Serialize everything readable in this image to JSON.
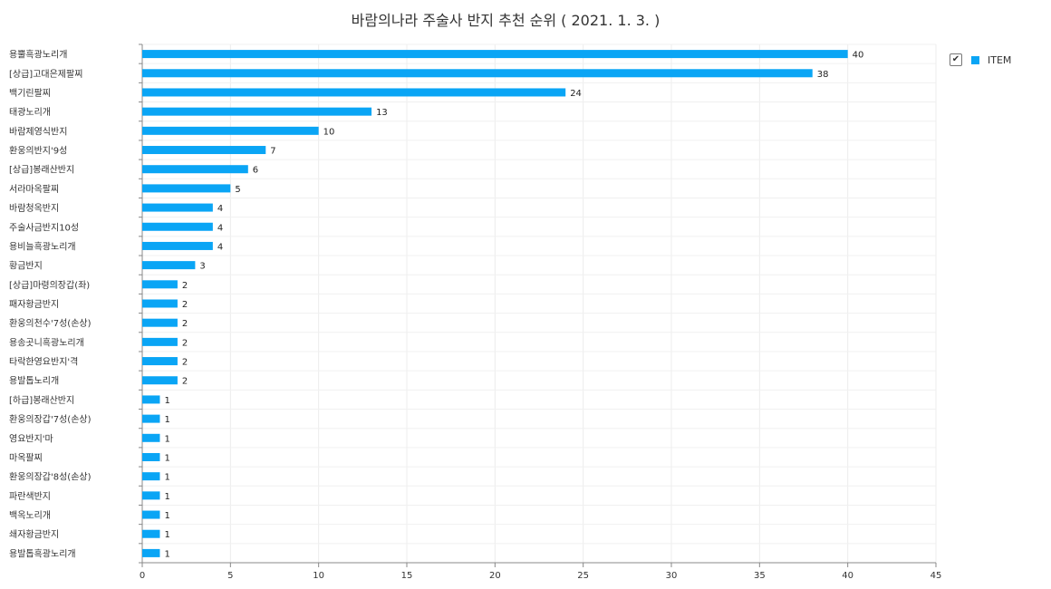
{
  "chart_data": {
    "type": "bar",
    "orientation": "horizontal",
    "title": "바람의나라 주술사 반지 추천 순위 ( 2021. 1. 3. )",
    "categories": [
      "용뿔흑광노리개",
      "[상급]고대은제팔찌",
      "백기린팔찌",
      "태광노리개",
      "바람제영식반지",
      "환웅의반지'9성",
      "[상급]봉래산반지",
      "서라마옥팔찌",
      "바람청옥반지",
      "주술사금반지10성",
      "용비늘흑광노리개",
      "황금반지",
      "[상급]마령의장갑(좌)",
      "패자황금반지",
      "환웅의천수'7성(손상)",
      "용송곳니흑광노리개",
      "타락한영요반지'격",
      "용발톱노리개",
      "[하급]봉래산반지",
      "환웅의장갑'7성(손상)",
      "영요반지'마",
      "마옥팔찌",
      "환웅의장갑'8성(손상)",
      "파란색반지",
      "백옥노리개",
      "쇄자황금반지",
      "용발톱흑광노리개"
    ],
    "series": [
      {
        "name": "ITEM",
        "color": "#0aa5f5",
        "values": [
          40,
          38,
          24,
          13,
          10,
          7,
          6,
          5,
          4,
          4,
          4,
          3,
          2,
          2,
          2,
          2,
          2,
          2,
          1,
          1,
          1,
          1,
          1,
          1,
          1,
          1,
          1
        ]
      }
    ],
    "xlim": [
      0,
      45
    ],
    "xticks": [
      0,
      5,
      10,
      15,
      20,
      25,
      30,
      35,
      40,
      45
    ],
    "grid": true,
    "legend": "top-right",
    "legend_checked": true,
    "data_labels": true
  }
}
